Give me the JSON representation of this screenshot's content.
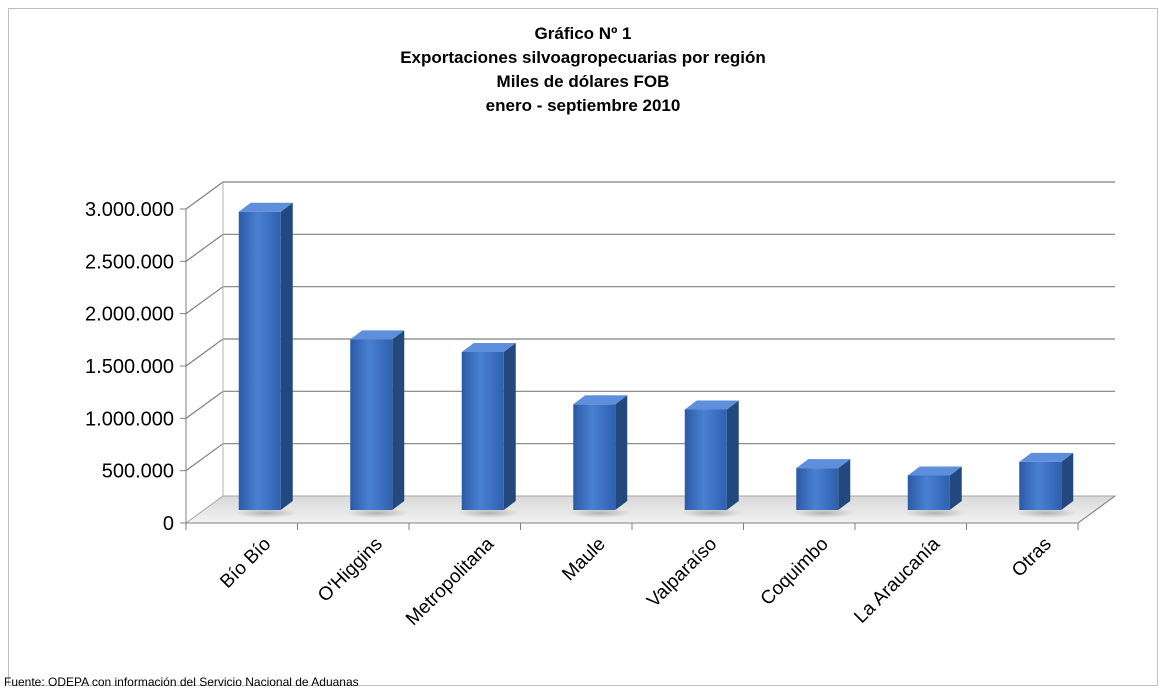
{
  "chart_data": {
    "type": "bar",
    "title_lines": [
      "Gráfico Nº 1",
      "Exportaciones silvoagropecuarias por región",
      "Miles de dólares FOB",
      "enero - septiembre 2010"
    ],
    "categories": [
      "Bío Bío",
      "O'Higgins",
      "Metropolitana",
      "Maule",
      "Valparaíso",
      "Coquimbo",
      "La Araucanía",
      "Otras"
    ],
    "values": [
      2850000,
      1630000,
      1510000,
      1010000,
      960000,
      400000,
      330000,
      460000
    ],
    "ylim": [
      0,
      3000000
    ],
    "y_ticks": [
      0,
      500000,
      1000000,
      1500000,
      2000000,
      2500000,
      3000000
    ],
    "y_tick_labels": [
      "0",
      "500.000",
      "1.000.000",
      "1.500.000",
      "2.000.000",
      "2.500.000",
      "3.000.000"
    ],
    "xlabel": "",
    "ylabel": "",
    "grid": true,
    "legend": "none",
    "style": "3d-column",
    "bar_color": "#3a6fc4"
  },
  "source_note": "Fuente: ODEPA con información del Servicio Nacional de Aduanas"
}
